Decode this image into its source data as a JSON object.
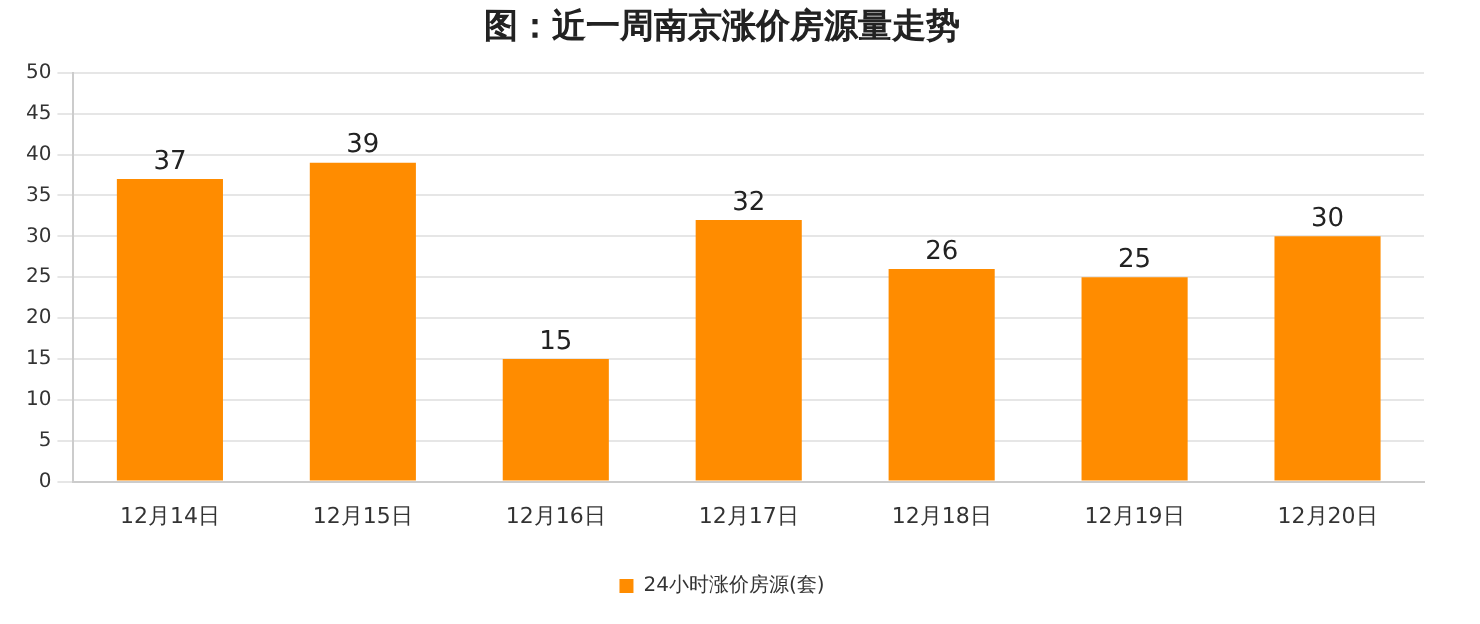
{
  "chart_data": {
    "type": "bar",
    "title": "图：近一周南京涨价房源量走势",
    "categories": [
      "12月14日",
      "12月15日",
      "12月16日",
      "12月17日",
      "12月18日",
      "12月19日",
      "12月20日"
    ],
    "series": [
      {
        "name": "24小时涨价房源(套)",
        "color": "#ff8c00",
        "values": [
          37,
          39,
          15,
          32,
          26,
          25,
          30
        ]
      }
    ],
    "ylim": [
      0,
      50
    ],
    "yticks": [
      0,
      5,
      10,
      15,
      20,
      25,
      30,
      35,
      40,
      45,
      50
    ],
    "grid": "y",
    "legend": "bottom",
    "data_labels": true
  }
}
